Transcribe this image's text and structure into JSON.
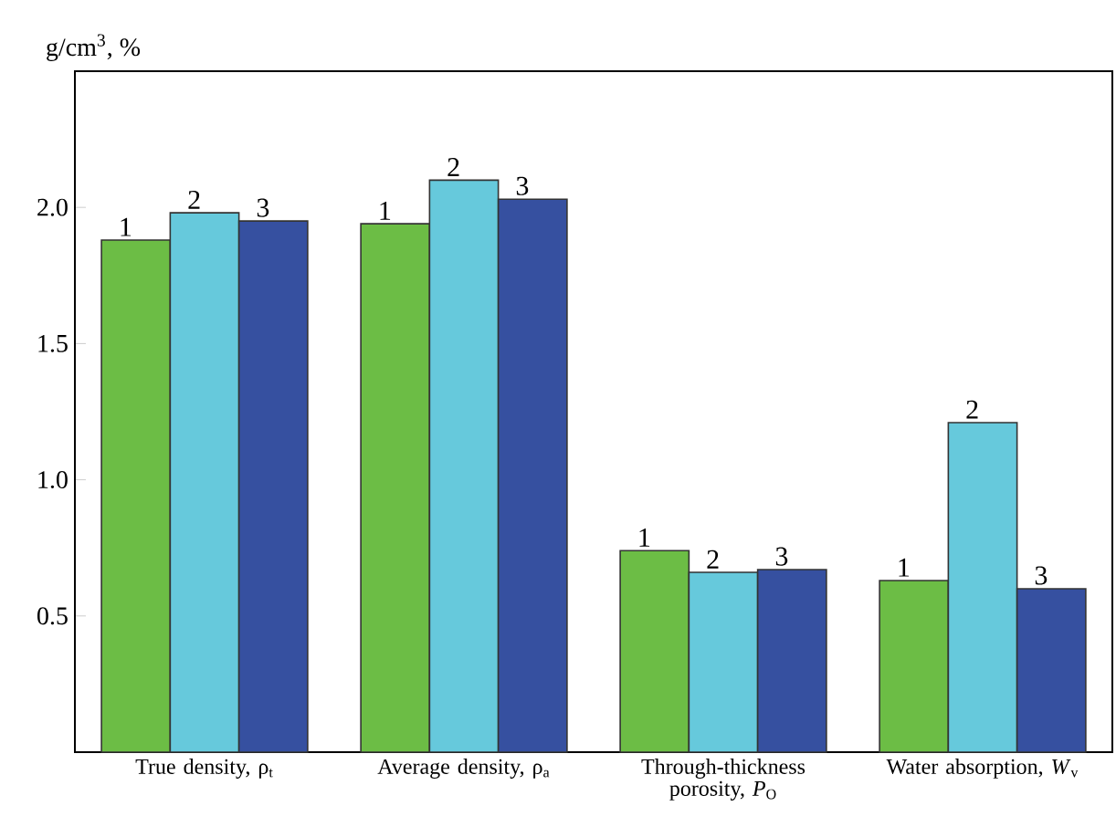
{
  "chart_data": {
    "type": "bar",
    "ylabel": "g/cm$^{3}$, %",
    "categories": [
      "True density, ρ$_{t}$",
      "Average density, ρ$_{a}$",
      "Through-thickness porosity, *P*$_{O}$",
      "Water absorption, *W*$_{v}$"
    ],
    "series": [
      {
        "name": "1",
        "color": "#6cbd45",
        "values": [
          1.88,
          1.94,
          0.74,
          0.63
        ]
      },
      {
        "name": "2",
        "color": "#66c9dc",
        "values": [
          1.98,
          2.1,
          0.66,
          1.21
        ]
      },
      {
        "name": "3",
        "color": "#3650a0",
        "values": [
          1.95,
          2.03,
          0.67,
          0.6
        ]
      }
    ],
    "ylim": [
      0,
      2.5
    ],
    "yticks": [
      0.5,
      {
        "value": 1.0,
        "label": "1.0"
      },
      1.5,
      {
        "value": 2.0,
        "label": "2.0"
      }
    ],
    "grid": false,
    "legend": false
  }
}
